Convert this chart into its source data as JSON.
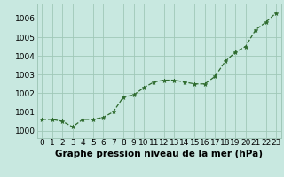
{
  "x": [
    0,
    1,
    2,
    3,
    4,
    5,
    6,
    7,
    8,
    9,
    10,
    11,
    12,
    13,
    14,
    15,
    16,
    17,
    18,
    19,
    20,
    21,
    22,
    23
  ],
  "y": [
    1000.6,
    1000.6,
    1000.5,
    1000.2,
    1000.6,
    1000.6,
    1000.7,
    1001.0,
    1001.8,
    1001.9,
    1002.3,
    1002.6,
    1002.7,
    1002.7,
    1002.6,
    1002.5,
    1002.5,
    1002.9,
    1003.7,
    1004.2,
    1004.5,
    1005.4,
    1005.8,
    1006.3
  ],
  "line_color": "#2d6a2d",
  "marker": "*",
  "bg_color": "#c8e8e0",
  "grid_color": "#a0c8b8",
  "xlabel": "Graphe pression niveau de la mer (hPa)",
  "xlabel_fontsize": 7.5,
  "ytick_labels": [
    "1000",
    "1001",
    "1002",
    "1003",
    "1004",
    "1005",
    "1006"
  ],
  "yticks": [
    1000,
    1001,
    1002,
    1003,
    1004,
    1005,
    1006
  ],
  "xticks": [
    0,
    1,
    2,
    3,
    4,
    5,
    6,
    7,
    8,
    9,
    10,
    11,
    12,
    13,
    14,
    15,
    16,
    17,
    18,
    19,
    20,
    21,
    22,
    23
  ],
  "xtick_labels": [
    "0",
    "1",
    "2",
    "3",
    "4",
    "5",
    "6",
    "7",
    "8",
    "9",
    "10",
    "11",
    "12",
    "13",
    "14",
    "15",
    "16",
    "17",
    "18",
    "19",
    "20",
    "21",
    "22",
    "23"
  ],
  "tick_label_fontsize": 6.5,
  "ylim": [
    999.6,
    1006.8
  ],
  "xlim": [
    -0.5,
    23.5
  ]
}
